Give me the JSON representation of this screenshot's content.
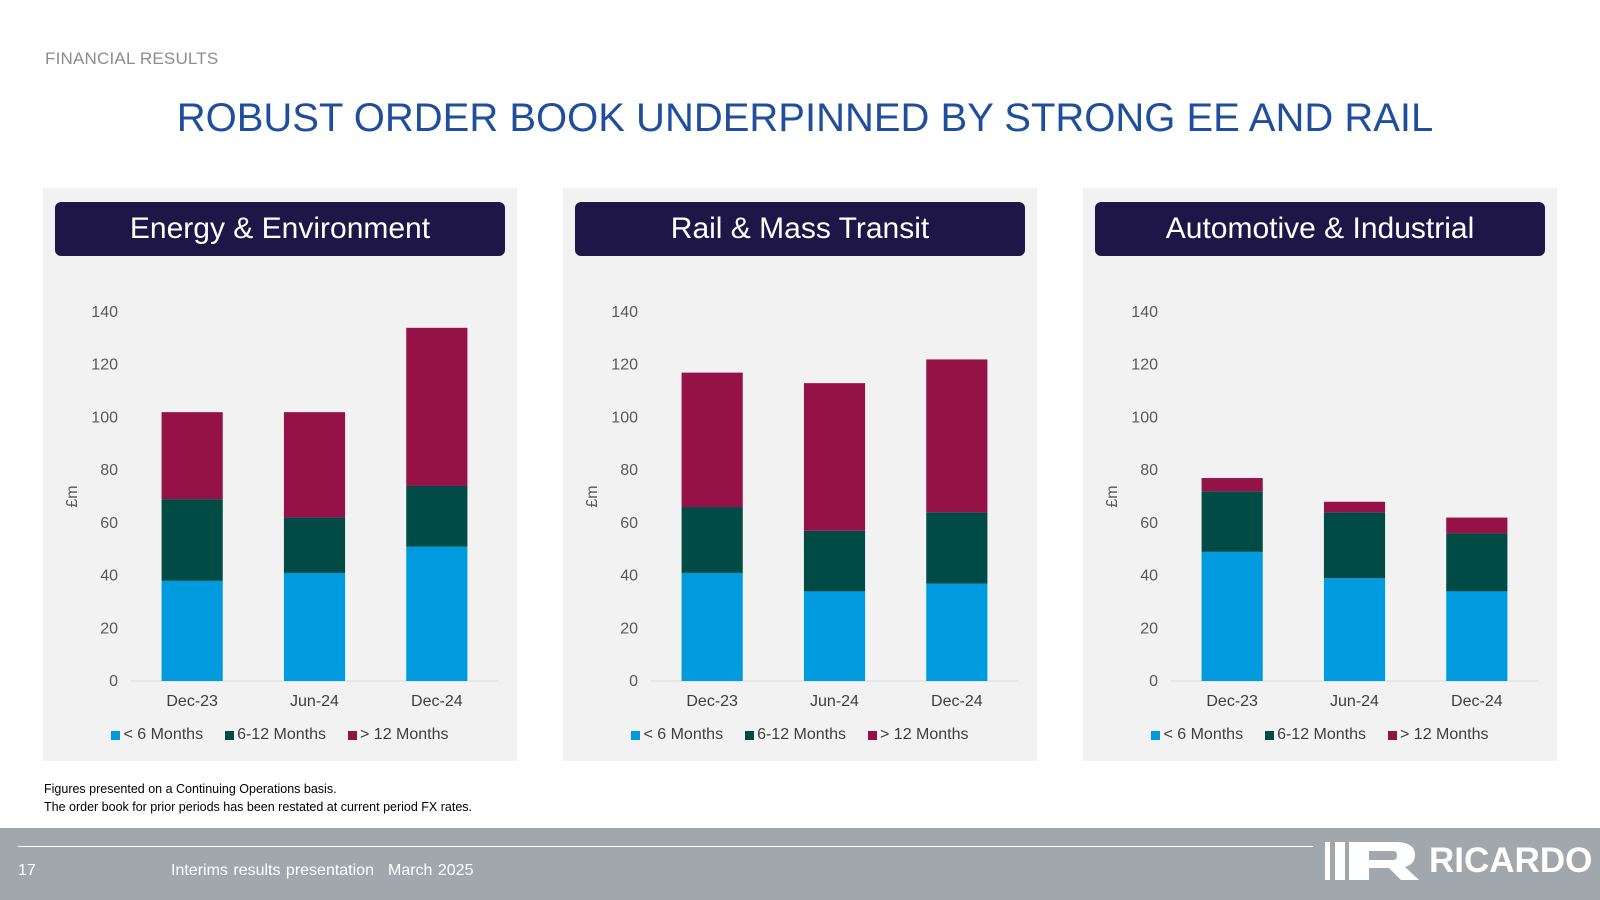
{
  "header": {
    "section_label": "FINANCIAL RESULTS",
    "title": "ROBUST ORDER BOOK UNDERPINNED BY STRONG EE AND RAIL"
  },
  "colors": {
    "lt6": "#009bdf",
    "m6_12": "#004b45",
    "gt12": "#941246",
    "panel_header_bg": "#1e1646",
    "title": "#1f4e9e"
  },
  "legend": {
    "lt6": "< 6 Months",
    "m6_12": "6-12 Months",
    "gt12": "> 12 Months"
  },
  "chart_data": [
    {
      "type": "bar",
      "stacked": true,
      "title": "Energy & Environment",
      "ylabel": "£m",
      "ylim": [
        0,
        140
      ],
      "yticks": [
        0,
        20,
        40,
        60,
        80,
        100,
        120,
        140
      ],
      "categories": [
        "Dec-23",
        "Jun-24",
        "Dec-24"
      ],
      "series": [
        {
          "name": "< 6 Months",
          "values": [
            38,
            41,
            51
          ]
        },
        {
          "name": "6-12 Months",
          "values": [
            31,
            21,
            23
          ]
        },
        {
          "name": "> 12 Months",
          "values": [
            33,
            40,
            60
          ]
        }
      ],
      "legend": "bottom",
      "grid": false
    },
    {
      "type": "bar",
      "stacked": true,
      "title": "Rail & Mass Transit",
      "ylabel": "£m",
      "ylim": [
        0,
        140
      ],
      "yticks": [
        0,
        20,
        40,
        60,
        80,
        100,
        120,
        140
      ],
      "categories": [
        "Dec-23",
        "Jun-24",
        "Dec-24"
      ],
      "series": [
        {
          "name": "< 6 Months",
          "values": [
            41,
            34,
            37
          ]
        },
        {
          "name": "6-12 Months",
          "values": [
            25,
            23,
            27
          ]
        },
        {
          "name": "> 12 Months",
          "values": [
            51,
            56,
            58
          ]
        }
      ],
      "legend": "bottom",
      "grid": false
    },
    {
      "type": "bar",
      "stacked": true,
      "title": "Automotive & Industrial",
      "ylabel": "£m",
      "ylim": [
        0,
        140
      ],
      "yticks": [
        0,
        20,
        40,
        60,
        80,
        100,
        120,
        140
      ],
      "categories": [
        "Dec-23",
        "Jun-24",
        "Dec-24"
      ],
      "series": [
        {
          "name": "< 6 Months",
          "values": [
            49,
            39,
            34
          ]
        },
        {
          "name": "6-12 Months",
          "values": [
            23,
            25,
            22
          ]
        },
        {
          "name": "> 12 Months",
          "values": [
            5,
            4,
            6
          ]
        }
      ],
      "legend": "bottom",
      "grid": false
    }
  ],
  "footnotes": {
    "line1": "Figures presented on a Continuing Operations basis.",
    "line2": "The order book for prior periods has been restated at current period FX rates."
  },
  "footer": {
    "page_number": "17",
    "presentation": "Interims results presentation",
    "date": "March 2025",
    "logo_text": "RICARDO"
  }
}
